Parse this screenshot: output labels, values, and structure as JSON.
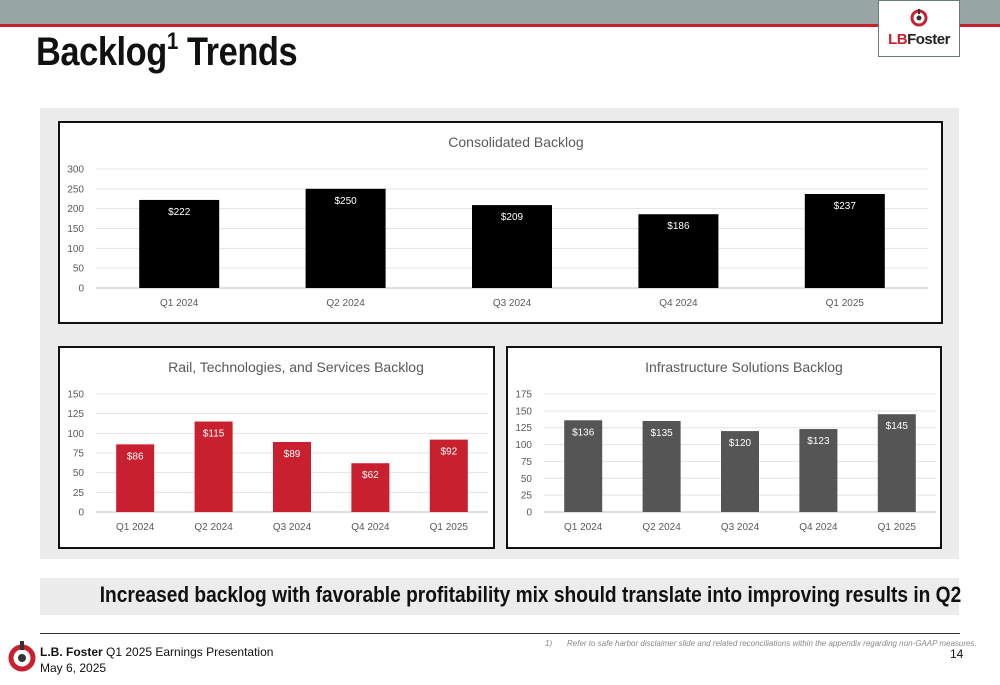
{
  "header": {
    "title": "Backlog",
    "title_sup": "1",
    "title_rest": " Trends",
    "logo_text_lb": "LB",
    "logo_text_rest": "Foster"
  },
  "callout": "Increased backlog with favorable profitability mix should translate into improving results in Q2",
  "footer": {
    "company_bold": "L.B. Foster",
    "company_rest": " Q1 2025 Earnings Presentation",
    "date": "May 6, 2025",
    "page": "14",
    "footnote_num": "1)",
    "footnote_text": "Refer to safe harbor disclaimer slide and related reconciliations within the appendix regarding non-GAAP measures."
  },
  "colors": {
    "brand_red": "#c8202f",
    "consolidated_bar": "#000000",
    "rail_bar": "#c8202f",
    "infra_bar": "#555555",
    "topbar": "#97a5a3"
  },
  "chart_data": [
    {
      "id": "consolidated",
      "type": "bar",
      "title": "Consolidated Backlog",
      "categories": [
        "Q1 2024",
        "Q2 2024",
        "Q3 2024",
        "Q4 2024",
        "Q1 2025"
      ],
      "values": [
        222,
        250,
        209,
        186,
        237
      ],
      "data_labels": [
        "$222",
        "$250",
        "$209",
        "$186",
        "$237"
      ],
      "ylim": [
        0,
        300
      ],
      "yticks": [
        0,
        50,
        100,
        150,
        200,
        250,
        300
      ],
      "grid": true,
      "color": "#000000",
      "label_color": "#ffffff"
    },
    {
      "id": "rail",
      "type": "bar",
      "title": "Rail, Technologies, and Services Backlog",
      "categories": [
        "Q1 2024",
        "Q2 2024",
        "Q3 2024",
        "Q4 2024",
        "Q1 2025"
      ],
      "values": [
        86,
        115,
        89,
        62,
        92
      ],
      "data_labels": [
        "$86",
        "$115",
        "$89",
        "$62",
        "$92"
      ],
      "ylim": [
        0,
        150
      ],
      "yticks": [
        0,
        25,
        50,
        75,
        100,
        125,
        150
      ],
      "grid": true,
      "color": "#c8202f",
      "label_color": "#ffffff"
    },
    {
      "id": "infra",
      "type": "bar",
      "title": "Infrastructure Solutions Backlog",
      "categories": [
        "Q1 2024",
        "Q2 2024",
        "Q3 2024",
        "Q4 2024",
        "Q1 2025"
      ],
      "values": [
        136,
        135,
        120,
        123,
        145
      ],
      "data_labels": [
        "$136",
        "$135",
        "$120",
        "$123",
        "$145"
      ],
      "ylim": [
        0,
        175
      ],
      "yticks": [
        0,
        25,
        50,
        75,
        100,
        125,
        150,
        175
      ],
      "grid": true,
      "color": "#555555",
      "label_color": "#ffffff"
    }
  ]
}
